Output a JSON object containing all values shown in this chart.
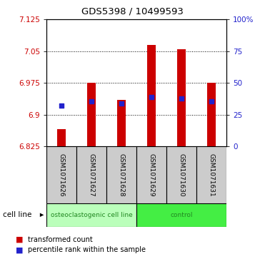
{
  "title": "GDS5398 / 10499593",
  "samples": [
    "GSM1071626",
    "GSM1071627",
    "GSM1071628",
    "GSM1071629",
    "GSM1071630",
    "GSM1071631"
  ],
  "bar_bottoms": [
    6.825,
    6.825,
    6.825,
    6.825,
    6.825,
    6.825
  ],
  "bar_tops": [
    6.865,
    6.975,
    6.935,
    7.065,
    7.055,
    6.975
  ],
  "blue_y": [
    6.922,
    6.932,
    6.926,
    6.942,
    6.938,
    6.932
  ],
  "ylim_left": [
    6.825,
    7.125
  ],
  "ylim_right": [
    0,
    100
  ],
  "yticks_left": [
    6.825,
    6.9,
    6.975,
    7.05,
    7.125
  ],
  "ytick_labels_left": [
    "6.825",
    "6.9",
    "6.975",
    "7.05",
    "7.125"
  ],
  "yticks_right": [
    0,
    25,
    50,
    75,
    100
  ],
  "ytick_labels_right": [
    "0",
    "25",
    "50",
    "75",
    "100%"
  ],
  "bar_color": "#cc0000",
  "blue_color": "#2222cc",
  "left_tick_color": "#cc0000",
  "right_tick_color": "#2222cc",
  "group_labels": [
    "osteoclastogenic cell line",
    "control"
  ],
  "group_ranges": [
    [
      0,
      3
    ],
    [
      3,
      6
    ]
  ],
  "group_bg_light": "#bbffbb",
  "group_bg_dark": "#44ee44",
  "group_text_color": "#228822",
  "cell_line_label": "cell line",
  "legend_items": [
    "transformed count",
    "percentile rank within the sample"
  ],
  "gray_box_color": "#cccccc",
  "white": "#ffffff",
  "black": "#000000",
  "bar_width": 0.28
}
